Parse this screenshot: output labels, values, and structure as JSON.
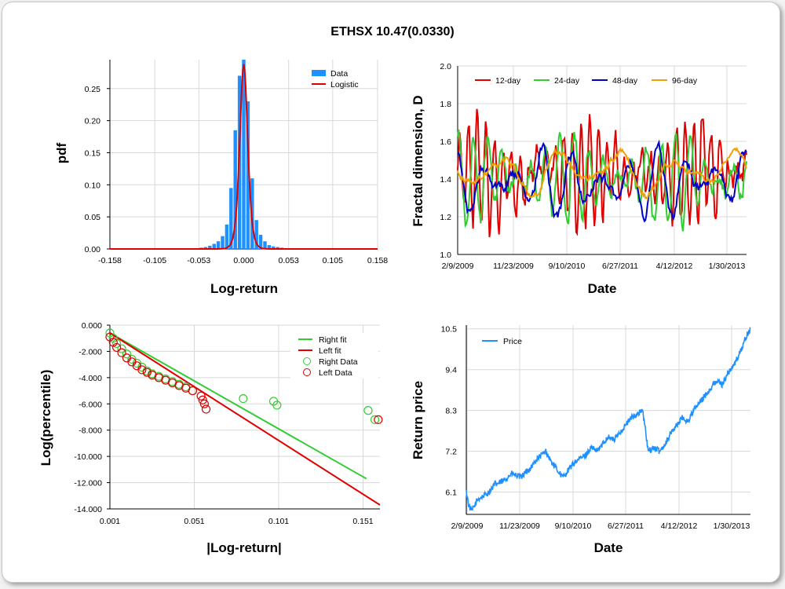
{
  "title": "ETHSX 10.47(0.0330)",
  "chart_data": [
    {
      "type": "bar",
      "xlabel": "Log-return",
      "ylabel": "pdf",
      "xlim": [
        -0.158,
        0.158
      ],
      "ylim": [
        0,
        0.295
      ],
      "xticks": [
        "-0.158",
        "-0.105",
        "-0.053",
        "0.000",
        "0.053",
        "0.105",
        "0.158"
      ],
      "xtick_values": [
        -0.158,
        -0.105,
        -0.053,
        0,
        0.053,
        0.105,
        0.158
      ],
      "yticks": [
        "0.00",
        "0.05",
        "0.10",
        "0.15",
        "0.20",
        "0.25"
      ],
      "ytick_values": [
        0,
        0.05,
        0.1,
        0.15,
        0.2,
        0.25
      ],
      "grid": true,
      "legend": "top-right",
      "series": [
        {
          "name": "Data",
          "color": "#1e90ff",
          "x": [
            -0.05,
            -0.045,
            -0.04,
            -0.035,
            -0.03,
            -0.025,
            -0.02,
            -0.015,
            -0.01,
            -0.005,
            0,
            0.005,
            0.01,
            0.015,
            0.02,
            0.025,
            0.03,
            0.035,
            0.04,
            0.045,
            0.05
          ],
          "values": [
            0.002,
            0.003,
            0.005,
            0.008,
            0.012,
            0.02,
            0.038,
            0.095,
            0.185,
            0.27,
            0.295,
            0.23,
            0.11,
            0.045,
            0.022,
            0.012,
            0.006,
            0.004,
            0.003,
            0.002,
            0.001
          ]
        },
        {
          "name": "Logistic",
          "color": "#e00000",
          "kind": "logistic",
          "scale": 0.0031,
          "peak": 0.288
        }
      ]
    },
    {
      "type": "line",
      "xlabel": "Date",
      "ylabel": "Fractal dimension, D",
      "ylim": [
        1.0,
        2.0
      ],
      "yticks": [
        "1.0",
        "1.2",
        "1.4",
        "1.6",
        "1.8",
        "2.0"
      ],
      "ytick_values": [
        1.0,
        1.2,
        1.4,
        1.6,
        1.8,
        2.0
      ],
      "xticks": [
        "2/9/2009",
        "11/23/2009",
        "9/10/2010",
        "6/27/2011",
        "4/12/2012",
        "1/30/2013"
      ],
      "grid": true,
      "legend": "top-left",
      "series": [
        {
          "name": "12-day",
          "color": "#e00000"
        },
        {
          "name": "24-day",
          "color": "#33cc33"
        },
        {
          "name": "48-day",
          "color": "#0000cc"
        },
        {
          "name": "96-day",
          "color": "#f0a000"
        }
      ]
    },
    {
      "type": "scatter",
      "xlabel": "|Log-return|",
      "ylabel": "Log(percentile)",
      "xlim": [
        0.001,
        0.161
      ],
      "ylim": [
        -14,
        0
      ],
      "xticks": [
        "0.001",
        "0.051",
        "0.101",
        "0.151"
      ],
      "xtick_values": [
        0.001,
        0.051,
        0.101,
        0.151
      ],
      "yticks": [
        "0.000",
        "-2.000",
        "-4.000",
        "-6.000",
        "-8.000",
        "-10.000",
        "-12.000",
        "-14.000"
      ],
      "ytick_values": [
        0,
        -2,
        -4,
        -6,
        -8,
        -10,
        -12,
        -14
      ],
      "grid": true,
      "legend": "top-right",
      "fits": [
        {
          "name": "Right fit",
          "color": "#33cc33",
          "x": [
            0.001,
            0.153
          ],
          "y": [
            -0.6,
            -11.7
          ]
        },
        {
          "name": "Left fit",
          "color": "#e00000",
          "x": [
            0.001,
            0.161
          ],
          "y": [
            -0.6,
            -13.7
          ]
        }
      ],
      "series": [
        {
          "name": "Right Data",
          "color": "#33cc33",
          "x": [
            0.001,
            0.003,
            0.005,
            0.008,
            0.011,
            0.014,
            0.017,
            0.02,
            0.023,
            0.026,
            0.03,
            0.034,
            0.038,
            0.042,
            0.046,
            0.05,
            0.08,
            0.098,
            0.1,
            0.154,
            0.158
          ],
          "y": [
            -0.6,
            -1.0,
            -1.4,
            -1.8,
            -2.2,
            -2.6,
            -2.9,
            -3.2,
            -3.5,
            -3.7,
            -3.9,
            -4.1,
            -4.3,
            -4.5,
            -4.7,
            -5.0,
            -5.6,
            -5.8,
            -6.1,
            -6.5,
            -7.2
          ]
        },
        {
          "name": "Left Data",
          "color": "#e00000",
          "x": [
            0.001,
            0.003,
            0.005,
            0.008,
            0.011,
            0.014,
            0.017,
            0.02,
            0.023,
            0.026,
            0.03,
            0.034,
            0.038,
            0.042,
            0.046,
            0.05,
            0.055,
            0.056,
            0.057,
            0.058,
            0.16
          ],
          "y": [
            -0.9,
            -1.3,
            -1.7,
            -2.1,
            -2.5,
            -2.8,
            -3.1,
            -3.4,
            -3.6,
            -3.8,
            -4.0,
            -4.2,
            -4.4,
            -4.6,
            -4.8,
            -5.0,
            -5.4,
            -5.7,
            -6.0,
            -6.4,
            -7.2
          ]
        }
      ]
    },
    {
      "type": "line",
      "xlabel": "Date",
      "ylabel": "Return price",
      "ylim": [
        5.5,
        10.6
      ],
      "yticks": [
        "6.1",
        "7.2",
        "8.3",
        "9.4",
        "10.5"
      ],
      "ytick_values": [
        6.1,
        7.2,
        8.3,
        9.4,
        10.5
      ],
      "xticks": [
        "2/9/2009",
        "11/23/2009",
        "9/10/2010",
        "6/27/2011",
        "4/12/2012",
        "1/30/2013"
      ],
      "grid": true,
      "legend": "top-left",
      "series": [
        {
          "name": "Price",
          "color": "#1e90ff",
          "t": [
            0,
            0.01,
            0.02,
            0.04,
            0.06,
            0.08,
            0.1,
            0.13,
            0.16,
            0.19,
            0.22,
            0.25,
            0.28,
            0.3,
            0.32,
            0.34,
            0.36,
            0.38,
            0.4,
            0.42,
            0.44,
            0.46,
            0.48,
            0.5,
            0.52,
            0.54,
            0.56,
            0.58,
            0.6,
            0.62,
            0.63,
            0.64,
            0.66,
            0.68,
            0.7,
            0.72,
            0.74,
            0.76,
            0.78,
            0.8,
            0.82,
            0.84,
            0.86,
            0.88,
            0.9,
            0.92,
            0.94,
            0.96,
            0.98,
            1.0
          ],
          "values": [
            6.1,
            5.7,
            5.6,
            5.9,
            6.0,
            6.1,
            6.3,
            6.4,
            6.6,
            6.5,
            6.7,
            7.0,
            7.2,
            6.9,
            6.7,
            6.5,
            6.7,
            6.9,
            7.0,
            7.1,
            7.3,
            7.2,
            7.4,
            7.6,
            7.5,
            7.7,
            7.9,
            8.1,
            8.2,
            8.3,
            7.8,
            7.2,
            7.3,
            7.2,
            7.4,
            7.7,
            7.9,
            8.1,
            8.0,
            8.3,
            8.5,
            8.7,
            8.9,
            9.1,
            9.0,
            9.3,
            9.5,
            9.8,
            10.2,
            10.5
          ]
        }
      ]
    }
  ]
}
